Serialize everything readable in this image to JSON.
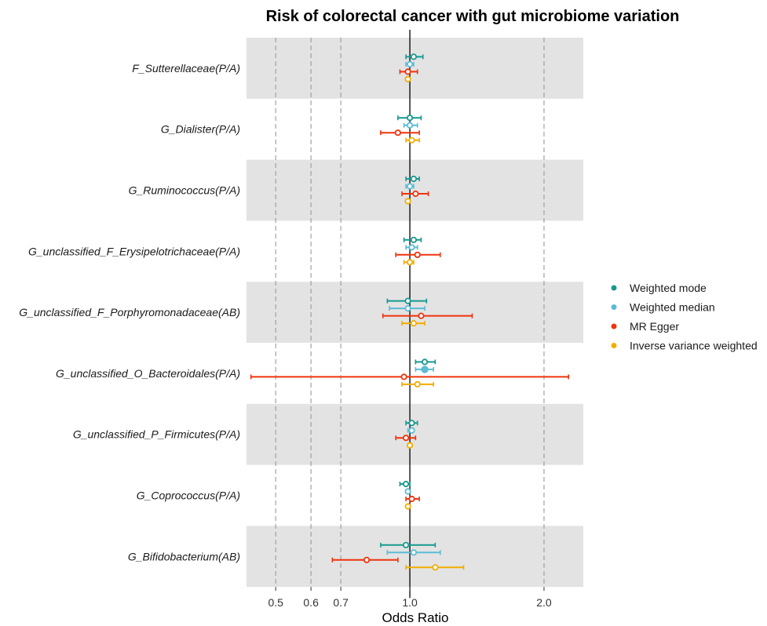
{
  "chart_data": {
    "type": "forest",
    "title": "Risk of colorectal cancer with gut microbiome variation",
    "xlabel": "Odds Ratio",
    "x_scale": "log",
    "xlim": [
      0.43,
      2.45
    ],
    "xticks": [
      0.5,
      0.6,
      0.7,
      1.0,
      2.0
    ],
    "xtick_labels": [
      "0.5",
      "0.6",
      "0.7",
      "1.0",
      "2.0"
    ],
    "reference_line": 1.0,
    "dashed_gridlines": [
      0.5,
      0.6,
      0.7,
      2.0
    ],
    "banded_rows": true,
    "legend_position": "right",
    "series": [
      {
        "name": "Weighted mode",
        "color": "#17998f",
        "filled_index": []
      },
      {
        "name": "Weighted median",
        "color": "#5bbcd6",
        "filled_index": [
          5
        ]
      },
      {
        "name": "MR Egger",
        "color": "#f0330c",
        "filled_index": []
      },
      {
        "name": "Inverse variance weighted",
        "color": "#f2ad00",
        "filled_index": []
      }
    ],
    "categories": [
      "F_Sutterellaceae(P/A)",
      "G_Dialister(P/A)",
      "G_Ruminococcus(P/A)",
      "G_unclassified_F_Erysipelotrichaceae(P/A)",
      "G_unclassified_F_Porphyromonadaceae(AB)",
      "G_unclassified_O_Bacteroidales(P/A)",
      "G_unclassified_P_Firmicutes(P/A)",
      "G_Coprococcus(P/A)",
      "G_Bifidobacterium(AB)"
    ],
    "estimates": [
      [
        [
          1.02,
          0.98,
          1.07
        ],
        [
          1.0,
          0.98,
          1.02
        ],
        [
          0.99,
          0.95,
          1.04
        ],
        [
          0.99,
          0.98,
          1.0
        ]
      ],
      [
        [
          1.0,
          0.94,
          1.06
        ],
        [
          1.0,
          0.97,
          1.04
        ],
        [
          0.94,
          0.86,
          1.05
        ],
        [
          1.01,
          0.98,
          1.05
        ]
      ],
      [
        [
          1.02,
          0.98,
          1.05
        ],
        [
          1.0,
          0.98,
          1.02
        ],
        [
          1.03,
          0.96,
          1.1
        ],
        [
          0.99,
          0.98,
          1.0
        ]
      ],
      [
        [
          1.02,
          0.97,
          1.06
        ],
        [
          1.01,
          0.98,
          1.04
        ],
        [
          1.04,
          0.93,
          1.17
        ],
        [
          1.0,
          0.97,
          1.02
        ]
      ],
      [
        [
          0.99,
          0.89,
          1.09
        ],
        [
          0.99,
          0.9,
          1.08
        ],
        [
          1.06,
          0.87,
          1.38
        ],
        [
          1.02,
          0.96,
          1.08
        ]
      ],
      [
        [
          1.08,
          1.03,
          1.14
        ],
        [
          1.08,
          1.03,
          1.13
        ],
        [
          0.97,
          0.44,
          2.27
        ],
        [
          1.04,
          0.96,
          1.13
        ]
      ],
      [
        [
          1.01,
          0.98,
          1.04
        ],
        [
          1.01,
          0.99,
          1.02
        ],
        [
          0.98,
          0.93,
          1.03
        ],
        [
          1.0,
          0.99,
          1.01
        ]
      ],
      [
        [
          0.98,
          0.95,
          1.0
        ],
        [
          0.99,
          0.98,
          1.0
        ],
        [
          1.01,
          0.98,
          1.05
        ],
        [
          0.99,
          0.99,
          1.0
        ]
      ],
      [
        [
          0.98,
          0.86,
          1.14
        ],
        [
          1.02,
          0.89,
          1.17
        ],
        [
          0.8,
          0.67,
          0.94
        ],
        [
          1.14,
          0.98,
          1.32
        ]
      ]
    ]
  },
  "legend": {
    "items": [
      {
        "label": "Weighted mode"
      },
      {
        "label": "Weighted median"
      },
      {
        "label": "MR Egger"
      },
      {
        "label": "Inverse variance weighted"
      }
    ]
  }
}
